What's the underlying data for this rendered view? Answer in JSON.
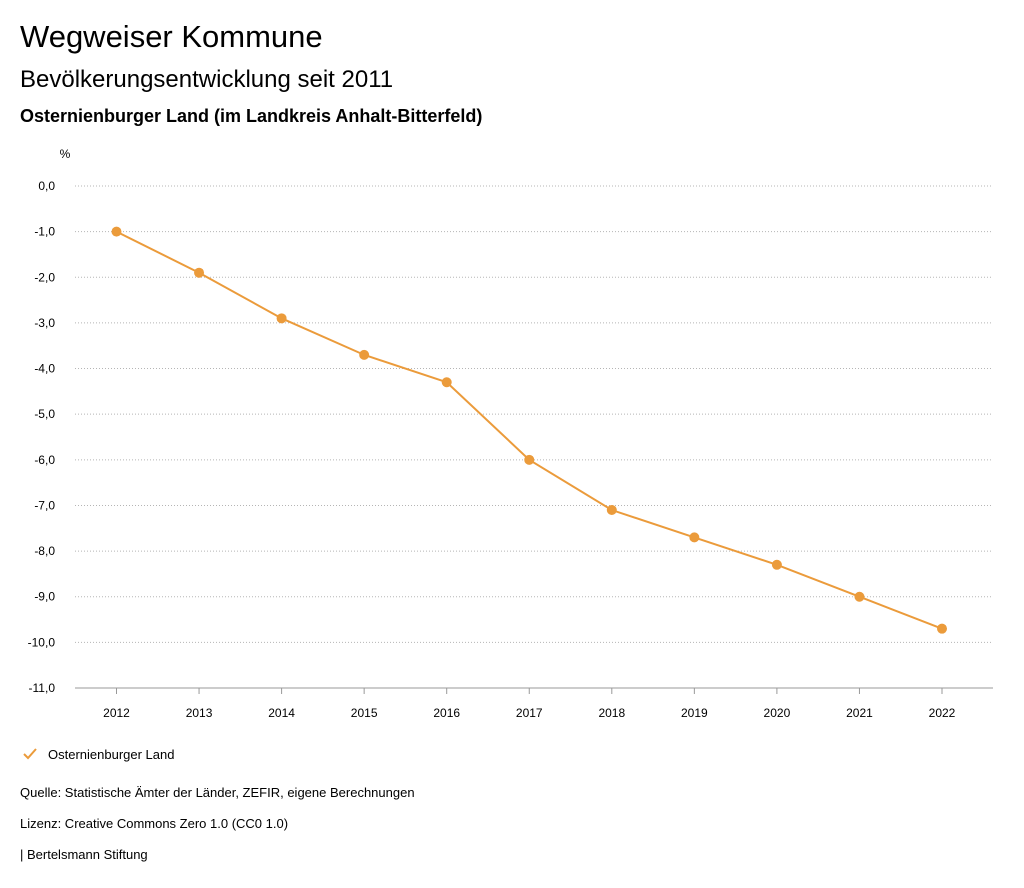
{
  "header": {
    "title": "Wegweiser Kommune",
    "subtitle": "Bevölkerungsentwicklung seit 2011",
    "region": "Osternienburger Land (im Landkreis Anhalt-Bitterfeld)"
  },
  "chart_data": {
    "type": "line",
    "ylabel": "%",
    "xlabel": "",
    "x": [
      "2012",
      "2013",
      "2014",
      "2015",
      "2016",
      "2017",
      "2018",
      "2019",
      "2020",
      "2021",
      "2022"
    ],
    "series": [
      {
        "name": "Osternienburger Land",
        "values": [
          -1.0,
          -1.9,
          -2.9,
          -3.7,
          -4.3,
          -6.0,
          -7.1,
          -7.7,
          -8.3,
          -9.0,
          -9.7
        ]
      }
    ],
    "ylim": [
      -11,
      0
    ],
    "yticks": [
      "0,0",
      "-1,0",
      "-2,0",
      "-3,0",
      "-4,0",
      "-5,0",
      "-6,0",
      "-7,0",
      "-8,0",
      "-9,0",
      "-10,0",
      "-11,0"
    ],
    "grid": true,
    "legend_position": "bottom-left",
    "line_color": "#eb9b3b"
  },
  "footer": {
    "source": "Quelle: Statistische Ämter der Länder, ZEFIR, eigene Berechnungen",
    "license": "Lizenz: Creative Commons Zero 1.0 (CC0 1.0)",
    "org": "| Bertelsmann Stiftung"
  }
}
